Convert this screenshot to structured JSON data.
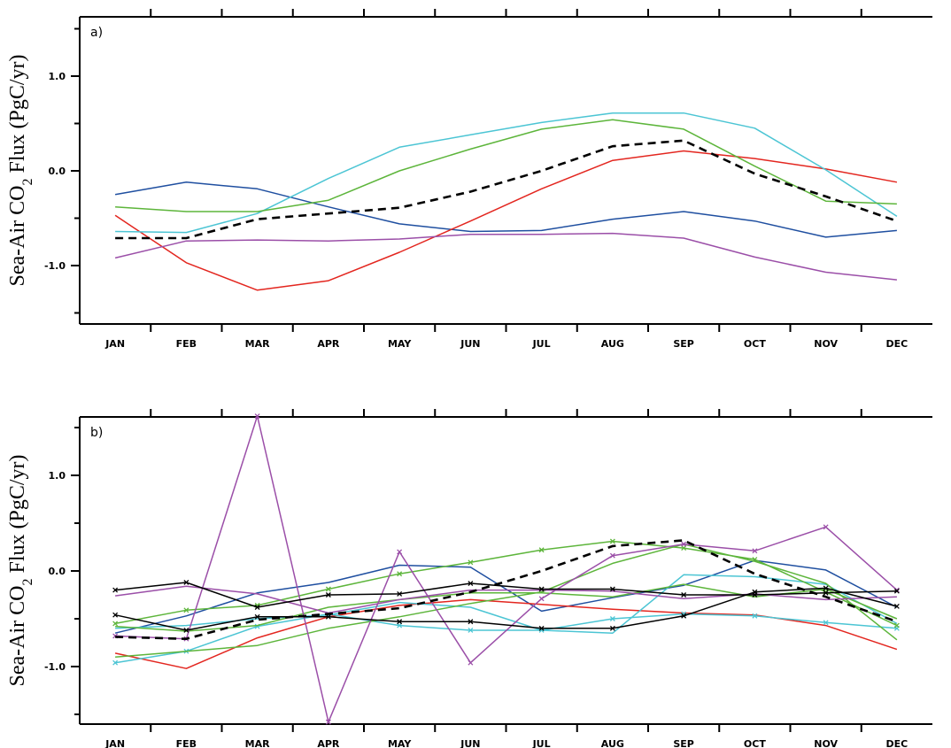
{
  "chart_data": [
    {
      "type": "line",
      "panel_label": "a)",
      "ylabel": "Sea-Air CO₂ Flux (PgC/yr)",
      "categories": [
        "JAN",
        "FEB",
        "MAR",
        "APR",
        "MAY",
        "JUN",
        "JUL",
        "AUG",
        "SEP",
        "OCT",
        "NOV",
        "DEC"
      ],
      "yticks": [
        "1.0",
        "0.0",
        "-1.0"
      ],
      "ylim": [
        -1.6,
        1.6
      ],
      "grid": false,
      "series": [
        {
          "color": "#1f4fa0",
          "dashed": false,
          "markers": false,
          "values": [
            -0.25,
            -0.12,
            -0.19,
            -0.38,
            -0.56,
            -0.64,
            -0.63,
            -0.51,
            -0.43,
            -0.53,
            -0.7,
            -0.63
          ]
        },
        {
          "color": "#e3261f",
          "dashed": false,
          "markers": false,
          "values": [
            -0.47,
            -0.97,
            -1.26,
            -1.16,
            -0.86,
            -0.53,
            -0.19,
            0.11,
            0.21,
            0.13,
            0.02,
            -0.12
          ]
        },
        {
          "color": "#4cc5d4",
          "dashed": false,
          "markers": false,
          "values": [
            -0.64,
            -0.65,
            -0.45,
            -0.08,
            0.25,
            0.38,
            0.51,
            0.61,
            0.61,
            0.45,
            0.01,
            -0.48
          ]
        },
        {
          "color": "#5db53b",
          "dashed": false,
          "markers": false,
          "values": [
            -0.38,
            -0.43,
            -0.43,
            -0.31,
            0.0,
            0.23,
            0.44,
            0.54,
            0.44,
            0.05,
            -0.32,
            -0.35
          ]
        },
        {
          "color": "#9b4fa8",
          "dashed": false,
          "markers": false,
          "values": [
            -0.92,
            -0.74,
            -0.73,
            -0.74,
            -0.72,
            -0.67,
            -0.67,
            -0.66,
            -0.71,
            -0.91,
            -1.07,
            -1.15
          ]
        },
        {
          "color": "#000000",
          "dashed": true,
          "markers": false,
          "values": [
            -0.71,
            -0.71,
            -0.51,
            -0.45,
            -0.39,
            -0.22,
            0.0,
            0.26,
            0.32,
            -0.03,
            -0.27,
            -0.53
          ]
        }
      ]
    },
    {
      "type": "line",
      "panel_label": "b)",
      "ylabel": "Sea-Air CO₂ Flux (PgC/yr)",
      "categories": [
        "JAN",
        "FEB",
        "MAR",
        "APR",
        "MAY",
        "JUN",
        "JUL",
        "AUG",
        "SEP",
        "OCT",
        "NOV",
        "DEC"
      ],
      "yticks": [
        "1.0",
        "0.0",
        "-1.0"
      ],
      "ylim": [
        -1.6,
        1.6
      ],
      "grid": false,
      "series": [
        {
          "color": "#1f4fa0",
          "dashed": false,
          "markers": false,
          "values": [
            -0.65,
            -0.47,
            -0.23,
            -0.12,
            0.06,
            0.04,
            -0.42,
            -0.28,
            -0.15,
            0.11,
            0.01,
            -0.38
          ]
        },
        {
          "color": "#e3261f",
          "dashed": false,
          "markers": false,
          "values": [
            -0.86,
            -1.02,
            -0.7,
            -0.48,
            -0.36,
            -0.3,
            -0.35,
            -0.4,
            -0.44,
            -0.46,
            -0.57,
            -0.82
          ]
        },
        {
          "color": "#4cc5d4",
          "dashed": false,
          "markers": false,
          "values": [
            -0.6,
            -0.57,
            -0.5,
            -0.46,
            -0.33,
            -0.38,
            -0.62,
            -0.65,
            -0.04,
            -0.06,
            -0.14,
            -0.55
          ]
        },
        {
          "color": "#4cc5d4",
          "dashed": false,
          "markers": true,
          "values": [
            -0.96,
            -0.84,
            -0.58,
            -0.45,
            -0.57,
            -0.62,
            -0.62,
            -0.5,
            -0.45,
            -0.47,
            -0.54,
            -0.6
          ]
        },
        {
          "color": "#5db53b",
          "dashed": false,
          "markers": true,
          "values": [
            -0.55,
            -0.41,
            -0.36,
            -0.19,
            -0.03,
            0.09,
            0.22,
            0.31,
            0.24,
            0.12,
            -0.22,
            -0.57
          ]
        },
        {
          "color": "#5db53b",
          "dashed": false,
          "markers": false,
          "values": [
            -0.9,
            -0.84,
            -0.78,
            -0.6,
            -0.48,
            -0.34,
            -0.22,
            0.08,
            0.28,
            0.1,
            -0.13,
            -0.72
          ]
        },
        {
          "color": "#5db53b",
          "dashed": false,
          "markers": false,
          "values": [
            -0.58,
            -0.63,
            -0.57,
            -0.38,
            -0.3,
            -0.23,
            -0.23,
            -0.27,
            -0.14,
            -0.27,
            -0.19,
            -0.5
          ]
        },
        {
          "color": "#9b4fa8",
          "dashed": false,
          "markers": true,
          "values": [
            -0.68,
            -0.71,
            1.62,
            -1.58,
            0.2,
            -0.96,
            -0.29,
            0.16,
            0.28,
            0.21,
            0.46,
            -0.2
          ]
        },
        {
          "color": "#9b4fa8",
          "dashed": false,
          "markers": false,
          "values": [
            -0.26,
            -0.16,
            -0.24,
            -0.44,
            -0.3,
            -0.2,
            -0.2,
            -0.21,
            -0.29,
            -0.24,
            -0.3,
            -0.27
          ]
        },
        {
          "color": "#000000",
          "dashed": false,
          "markers": true,
          "values": [
            -0.2,
            -0.12,
            -0.38,
            -0.25,
            -0.24,
            -0.13,
            -0.19,
            -0.19,
            -0.25,
            -0.25,
            -0.23,
            -0.21
          ]
        },
        {
          "color": "#000000",
          "dashed": false,
          "markers": true,
          "values": [
            -0.46,
            -0.62,
            -0.48,
            -0.48,
            -0.53,
            -0.53,
            -0.6,
            -0.6,
            -0.47,
            -0.22,
            -0.18,
            -0.37
          ]
        },
        {
          "color": "#000000",
          "dashed": true,
          "markers": false,
          "values": [
            -0.69,
            -0.71,
            -0.51,
            -0.45,
            -0.39,
            -0.22,
            0.0,
            0.26,
            0.32,
            -0.03,
            -0.27,
            -0.53
          ]
        }
      ]
    }
  ]
}
